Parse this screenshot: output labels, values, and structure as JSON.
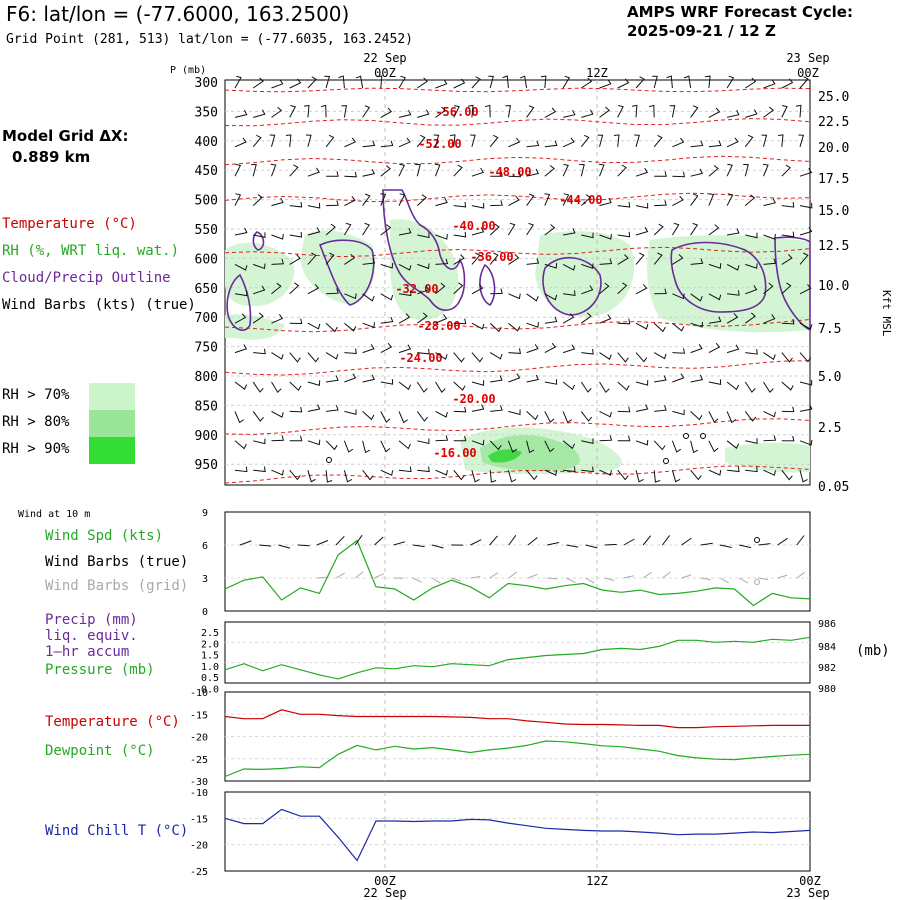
{
  "header": {
    "title": "F6:  lat/lon = (-77.6000, 163.2500)",
    "subtitle": "Grid Point (281, 513) lat/lon = (-77.6035, 163.2452)",
    "cycle_line1": "AMPS WRF Forecast Cycle:",
    "cycle_line2": "2025-09-21 / 12  Z"
  },
  "left_panel": {
    "grid_label": "Model Grid ΔX:",
    "grid_value": "0.889 km",
    "legend_items": [
      {
        "label": "Temperature (°C)",
        "color": "#cc0000"
      },
      {
        "label": "RH (%, WRT liq. wat.)",
        "color": "#22aa22"
      },
      {
        "label": "Cloud/Precip Outline",
        "color": "#6a2a9a"
      },
      {
        "label": "Wind Barbs (kts) (true)",
        "color": "#000000"
      }
    ],
    "rh_swatches": [
      {
        "label": "RH > 70%",
        "color": "#ccf5cc"
      },
      {
        "label": "RH > 80%",
        "color": "#99e699"
      },
      {
        "label": "RH > 90%",
        "color": "#33dd33"
      }
    ]
  },
  "time_axis": {
    "top_dates": [
      "22 Sep",
      "23 Sep"
    ],
    "bottom_dates": [
      "22 Sep",
      "23 Sep"
    ],
    "ticks": [
      "00Z",
      "12Z",
      "00Z"
    ]
  },
  "chart_data": [
    {
      "type": "line",
      "title": "",
      "subtype": "pressure-time cross-section",
      "ylabel_left": "P (mb)",
      "ylabel_right": "Kft MSL",
      "y_ticks_left": [
        "300",
        "350",
        "400",
        "450",
        "500",
        "550",
        "600",
        "650",
        "700",
        "750",
        "800",
        "850",
        "900",
        "950"
      ],
      "y_ticks_right": [
        "25.0",
        "22.5",
        "20.0",
        "17.5",
        "15.0",
        "12.5",
        "10.0",
        "7.5",
        "5.0",
        "2.5",
        "0.05"
      ],
      "x_ticks": [
        "00Z",
        "12Z",
        "00Z"
      ],
      "series": [
        {
          "name": "-56.00",
          "y": 357
        },
        {
          "name": "-52.00",
          "y": 393
        },
        {
          "name": "-48.00",
          "y": 432
        },
        {
          "name": "-44.00",
          "y": 470
        },
        {
          "name": "-40.00",
          "y": 525
        },
        {
          "name": "-36.00",
          "y": 600
        },
        {
          "name": "-32.00",
          "y": 643
        },
        {
          "name": "-28.00",
          "y": 702
        },
        {
          "name": "-24.00",
          "y": 750
        },
        {
          "name": "-20.00",
          "y": 838
        },
        {
          "name": "-16.00",
          "y": 920
        }
      ]
    },
    {
      "type": "line",
      "title": "",
      "label": "Wind at 10 m",
      "yticks": [
        "9",
        "6",
        "3",
        "0"
      ],
      "ylim": [
        0,
        9
      ],
      "series": [
        {
          "name": "Wind Spd (kts)",
          "color": "#22aa22"
        },
        {
          "name": "Wind Barbs (true)",
          "color": "#000000"
        },
        {
          "name": "Wind Barbs (grid)",
          "color": "#aaaaaa"
        }
      ],
      "values": [
        2.0,
        2.8,
        3.1,
        1.0,
        2.1,
        1.6,
        5.1,
        6.4,
        2.2,
        2.0,
        1.0,
        2.1,
        2.8,
        2.2,
        1.2,
        2.5,
        2.3,
        2.0,
        2.3,
        2.5,
        1.9,
        1.7,
        1.9,
        1.5,
        1.6,
        1.8,
        2.1,
        2.0,
        0.5,
        1.6,
        1.2,
        1.1
      ]
    },
    {
      "type": "line",
      "title": "",
      "yticks_left": [
        "2.5",
        "2.0",
        "1.5",
        "1.0",
        "0.5",
        "0.0"
      ],
      "yticks_right": [
        "986",
        "984",
        "982",
        "980"
      ],
      "right_unit": "(mb)",
      "series": [
        {
          "name": "Precip (mm) liq. equiv. 1-hr accum",
          "color": "#6a2a9a",
          "values": []
        },
        {
          "name": "Pressure (mb)",
          "color": "#22aa22",
          "values": [
            981.3,
            981.9,
            981.2,
            981.8,
            981.3,
            980.8,
            980.4,
            981.0,
            981.5,
            981.4,
            981.7,
            981.6,
            981.9,
            981.8,
            981.7,
            982.3,
            982.5,
            982.7,
            982.8,
            982.9,
            983.3,
            983.4,
            983.3,
            983.6,
            984.2,
            984.2,
            984.0,
            984.1,
            984.0,
            984.3,
            984.2,
            984.5
          ]
        }
      ]
    },
    {
      "type": "line",
      "title": "",
      "yticks": [
        "-10",
        "-15",
        "-20",
        "-25",
        "-30"
      ],
      "ylim": [
        -30,
        -10
      ],
      "series": [
        {
          "name": "Temperature (°C)",
          "color": "#cc0000",
          "values": [
            -15.5,
            -16.0,
            -16.0,
            -14.0,
            -15.0,
            -15.0,
            -15.3,
            -15.5,
            -15.5,
            -15.5,
            -15.5,
            -15.5,
            -15.6,
            -15.7,
            -16.0,
            -16.0,
            -16.5,
            -16.8,
            -17.2,
            -17.3,
            -17.3,
            -17.4,
            -17.5,
            -17.5,
            -18.0,
            -18.0,
            -17.8,
            -17.7,
            -17.6,
            -17.5,
            -17.5,
            -17.5
          ]
        },
        {
          "name": "Dewpoint (°C)",
          "color": "#22aa22",
          "values": [
            -29.0,
            -27.3,
            -27.4,
            -27.2,
            -26.8,
            -27.0,
            -24.0,
            -22.0,
            -23.0,
            -22.2,
            -22.8,
            -22.5,
            -23.0,
            -23.6,
            -23.0,
            -22.6,
            -22.0,
            -21.0,
            -21.2,
            -21.6,
            -22.1,
            -22.3,
            -22.8,
            -23.3,
            -24.3,
            -24.8,
            -25.1,
            -25.2,
            -24.8,
            -24.5,
            -24.2,
            -24.0
          ]
        }
      ]
    },
    {
      "type": "line",
      "title": "",
      "yticks": [
        "-10",
        "-15",
        "-20",
        "-25"
      ],
      "ylim": [
        -25,
        -10
      ],
      "series": [
        {
          "name": "Wind Chill T (°C)",
          "color": "#1a2aa8",
          "values": [
            -15.0,
            -16.0,
            -16.0,
            -13.3,
            -14.6,
            -14.6,
            -18.6,
            -23.0,
            -15.5,
            -15.5,
            -15.6,
            -15.5,
            -15.5,
            -15.2,
            -15.3,
            -15.9,
            -16.4,
            -16.9,
            -17.1,
            -17.3,
            -17.4,
            -17.4,
            -17.6,
            -17.8,
            -18.1,
            -18.0,
            -18.0,
            -17.8,
            -17.6,
            -17.7,
            -17.5,
            -17.3
          ]
        }
      ]
    }
  ]
}
